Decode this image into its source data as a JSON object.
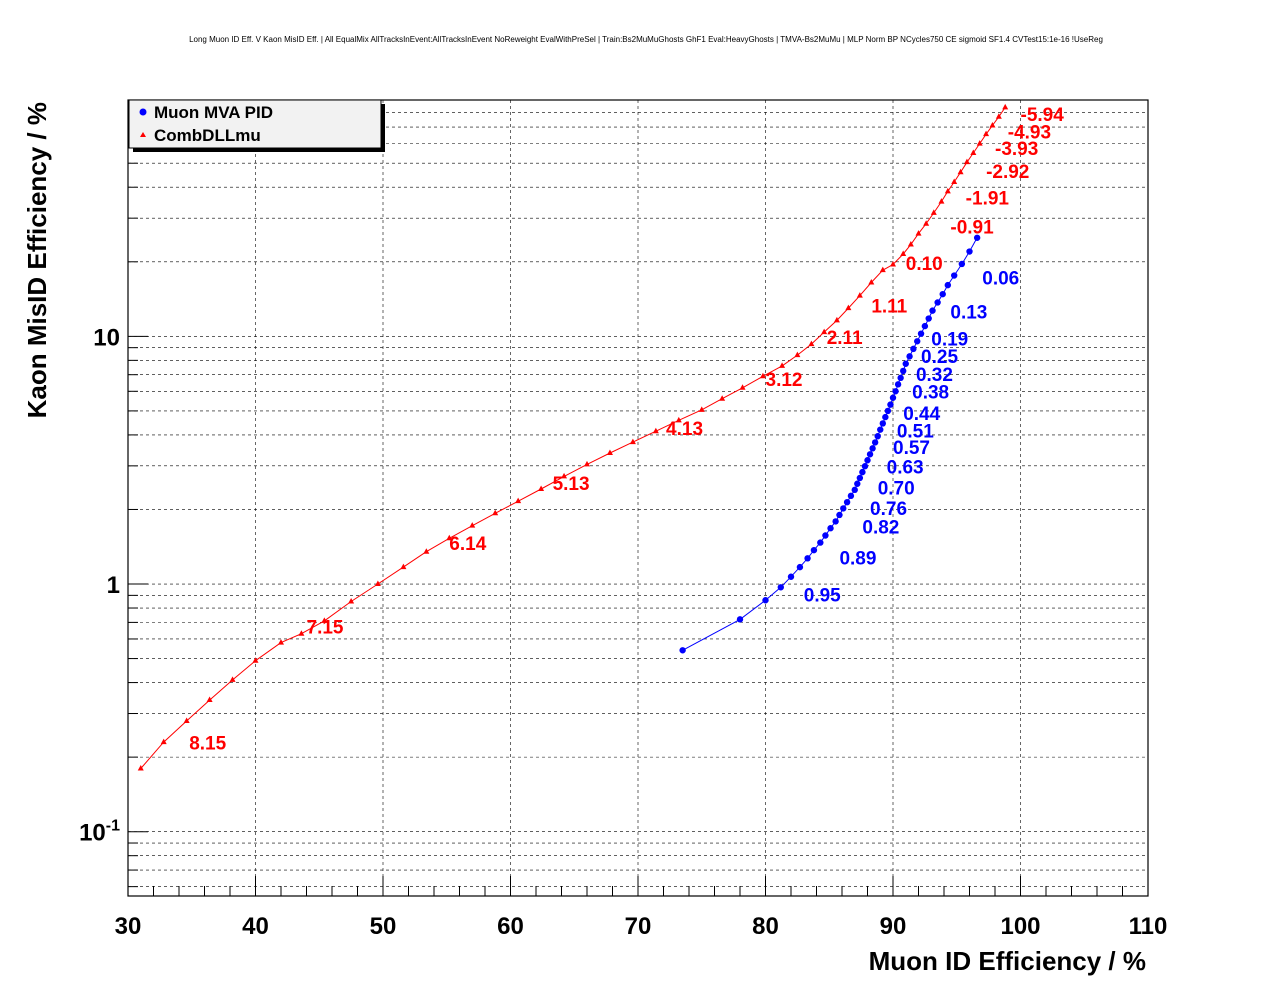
{
  "chart_data": {
    "type": "scatter",
    "title": "Long Muon ID Eff. V Kaon MisID Eff. | All EqualMix AllTracksInEvent:AllTracksInEvent NoReweight EvalWithPreSel | Train:Bs2MuMuGhosts GhF1 Eval:HeavyGhosts | TMVA-Bs2MuMu | MLP Norm BP NCycles750 CE sigmoid SF1.4 CVTest15:1e-16 !UseReg",
    "xlabel": "Muon ID Efficiency / %",
    "ylabel": "Kaon MisID Efficiency / %",
    "xlim": [
      30,
      110
    ],
    "ylim": [
      0.055,
      90
    ],
    "yscale": "log",
    "grid": true,
    "legend_position": "top-left",
    "x_ticks": [
      "30",
      "40",
      "50",
      "60",
      "70",
      "80",
      "90",
      "100",
      "110"
    ],
    "y_ticks": [
      {
        "base": "10",
        "exp": "-1",
        "value": 0.1
      },
      {
        "base": "1",
        "exp": "",
        "value": 1
      },
      {
        "base": "10",
        "exp": "",
        "value": 10
      }
    ],
    "series": [
      {
        "name": "Muon MVA PID",
        "color": "#0000ff",
        "marker": "circle",
        "x": [
          73.5,
          78.0,
          80.0,
          81.2,
          82.0,
          82.7,
          83.3,
          83.8,
          84.3,
          84.7,
          85.1,
          85.5,
          85.8,
          86.1,
          86.4,
          86.7,
          87.0,
          87.2,
          87.4,
          87.6,
          87.8,
          88.0,
          88.2,
          88.4,
          88.6,
          88.8,
          89.0,
          89.2,
          89.4,
          89.6,
          89.8,
          90.0,
          90.2,
          90.4,
          90.6,
          90.8,
          91.0,
          91.3,
          91.6,
          91.9,
          92.2,
          92.5,
          92.8,
          93.1,
          93.5,
          93.9,
          94.3,
          94.8,
          95.4,
          96.0,
          96.6
        ],
        "y": [
          0.54,
          0.72,
          0.86,
          0.97,
          1.07,
          1.17,
          1.27,
          1.37,
          1.47,
          1.57,
          1.68,
          1.79,
          1.9,
          2.02,
          2.14,
          2.27,
          2.4,
          2.54,
          2.68,
          2.83,
          2.99,
          3.16,
          3.34,
          3.53,
          3.73,
          3.95,
          4.2,
          4.45,
          4.72,
          5.0,
          5.3,
          5.65,
          6.0,
          6.4,
          6.8,
          7.25,
          7.75,
          8.3,
          8.9,
          9.55,
          10.25,
          11.0,
          11.8,
          12.7,
          13.7,
          14.8,
          16.1,
          17.6,
          19.6,
          22.0,
          25.0
        ],
        "labels": [
          {
            "text": "0.95",
            "x": 83.0,
            "y": 0.85
          },
          {
            "text": "0.89",
            "x": 85.8,
            "y": 1.2
          },
          {
            "text": "0.82",
            "x": 87.6,
            "y": 1.6
          },
          {
            "text": "0.76",
            "x": 88.2,
            "y": 1.9
          },
          {
            "text": "0.70",
            "x": 88.8,
            "y": 2.3
          },
          {
            "text": "0.63",
            "x": 89.5,
            "y": 2.8
          },
          {
            "text": "0.57",
            "x": 90.0,
            "y": 3.35
          },
          {
            "text": "0.51",
            "x": 90.3,
            "y": 3.9
          },
          {
            "text": "0.44",
            "x": 90.8,
            "y": 4.6
          },
          {
            "text": "0.38",
            "x": 91.5,
            "y": 5.6
          },
          {
            "text": "0.32",
            "x": 91.8,
            "y": 6.6
          },
          {
            "text": "0.25",
            "x": 92.2,
            "y": 7.8
          },
          {
            "text": "0.19",
            "x": 93.0,
            "y": 9.2
          },
          {
            "text": "0.13",
            "x": 94.5,
            "y": 11.8
          },
          {
            "text": "0.06",
            "x": 97.0,
            "y": 16.2
          }
        ]
      },
      {
        "name": "CombDLLmu",
        "color": "#ff0000",
        "marker": "triangle",
        "x": [
          31.0,
          32.8,
          34.6,
          36.4,
          38.2,
          40.0,
          42.0,
          43.6,
          45.4,
          47.5,
          49.6,
          51.6,
          53.4,
          55.2,
          57.0,
          58.8,
          60.6,
          62.4,
          64.2,
          66.0,
          67.8,
          69.6,
          71.4,
          73.2,
          75.0,
          76.6,
          78.2,
          79.8,
          81.3,
          82.5,
          83.6,
          84.6,
          85.6,
          86.5,
          87.4,
          88.3,
          89.2,
          90.0,
          90.8,
          91.4,
          92.0,
          92.6,
          93.2,
          93.8,
          94.3,
          94.8,
          95.3,
          95.8,
          96.3,
          96.8,
          97.3,
          97.8,
          98.3,
          98.8
        ],
        "y": [
          0.18,
          0.23,
          0.28,
          0.34,
          0.41,
          0.49,
          0.58,
          0.63,
          0.71,
          0.85,
          1.0,
          1.17,
          1.35,
          1.53,
          1.72,
          1.93,
          2.16,
          2.42,
          2.72,
          3.04,
          3.38,
          3.74,
          4.14,
          4.58,
          5.05,
          5.6,
          6.2,
          6.9,
          7.6,
          8.4,
          9.3,
          10.4,
          11.6,
          13.0,
          14.6,
          16.5,
          18.5,
          19.5,
          21.5,
          23.5,
          26.0,
          28.5,
          31.5,
          35.0,
          38.5,
          42.0,
          46.0,
          50.5,
          55.0,
          60.0,
          65.5,
          71.0,
          77.0,
          84.0
        ],
        "labels": [
          {
            "text": "8.15",
            "x": 34.8,
            "y": 0.215
          },
          {
            "text": "7.15",
            "x": 44.0,
            "y": 0.63
          },
          {
            "text": "6.14",
            "x": 55.2,
            "y": 1.37
          },
          {
            "text": "5.13",
            "x": 63.3,
            "y": 2.4
          },
          {
            "text": "4.13",
            "x": 72.2,
            "y": 4.0
          },
          {
            "text": "3.12",
            "x": 80.0,
            "y": 6.3
          },
          {
            "text": "2.11",
            "x": 84.8,
            "y": 9.3
          },
          {
            "text": "1.11",
            "x": 88.3,
            "y": 12.5
          },
          {
            "text": "0.10",
            "x": 91.0,
            "y": 18.5
          },
          {
            "text": "-0.91",
            "x": 94.5,
            "y": 26.0
          },
          {
            "text": "-1.91",
            "x": 95.7,
            "y": 34.0
          },
          {
            "text": "-2.92",
            "x": 97.3,
            "y": 43.5
          },
          {
            "text": "-3.93",
            "x": 98.0,
            "y": 54.0
          },
          {
            "text": "-4.93",
            "x": 99.0,
            "y": 63.0
          },
          {
            "text": "-5.94",
            "x": 100.0,
            "y": 74.0
          }
        ]
      }
    ]
  }
}
